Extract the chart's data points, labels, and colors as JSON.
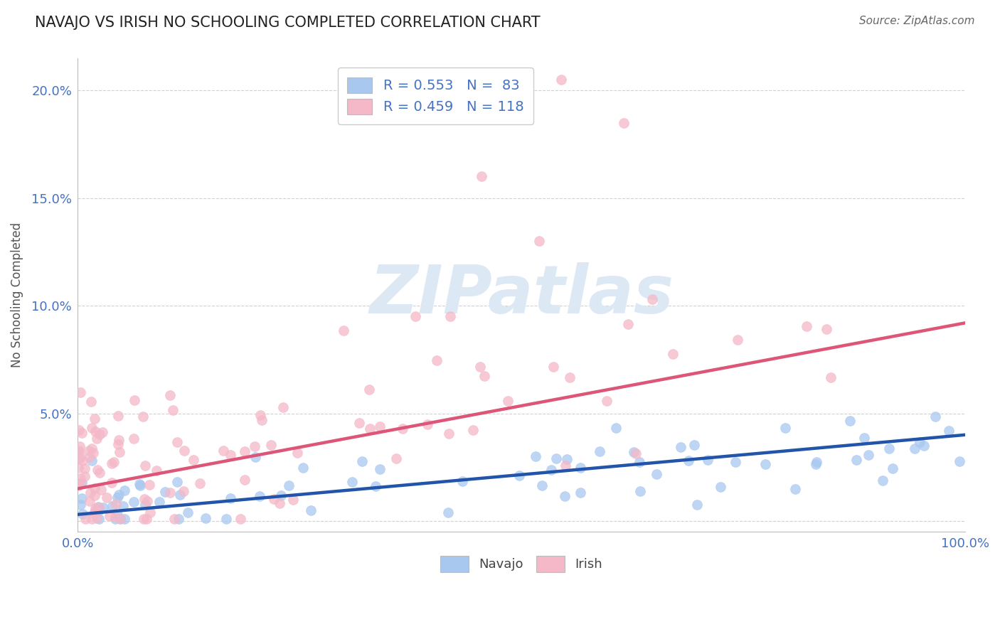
{
  "title": "NAVAJO VS IRISH NO SCHOOLING COMPLETED CORRELATION CHART",
  "source": "Source: ZipAtlas.com",
  "ylabel": "No Schooling Completed",
  "xlabel": "",
  "navajo_R": 0.553,
  "navajo_N": 83,
  "irish_R": 0.459,
  "irish_N": 118,
  "navajo_color": "#a8c8f0",
  "irish_color": "#f4b8c8",
  "navajo_line_color": "#2255aa",
  "irish_line_color": "#dd5577",
  "background_color": "#ffffff",
  "grid_color": "#cccccc",
  "title_color": "#222222",
  "label_color": "#4472c4",
  "source_color": "#666666",
  "xmin": 0.0,
  "xmax": 1.0,
  "ymin": -0.005,
  "ymax": 0.215,
  "watermark_text": "ZIPatlas",
  "watermark_color": "#dde8f5",
  "legend_navajo_label": "R = 0.553   N =  83",
  "legend_irish_label": "R = 0.459   N = 118",
  "bottom_navajo_label": "Navajo",
  "bottom_irish_label": "Irish"
}
